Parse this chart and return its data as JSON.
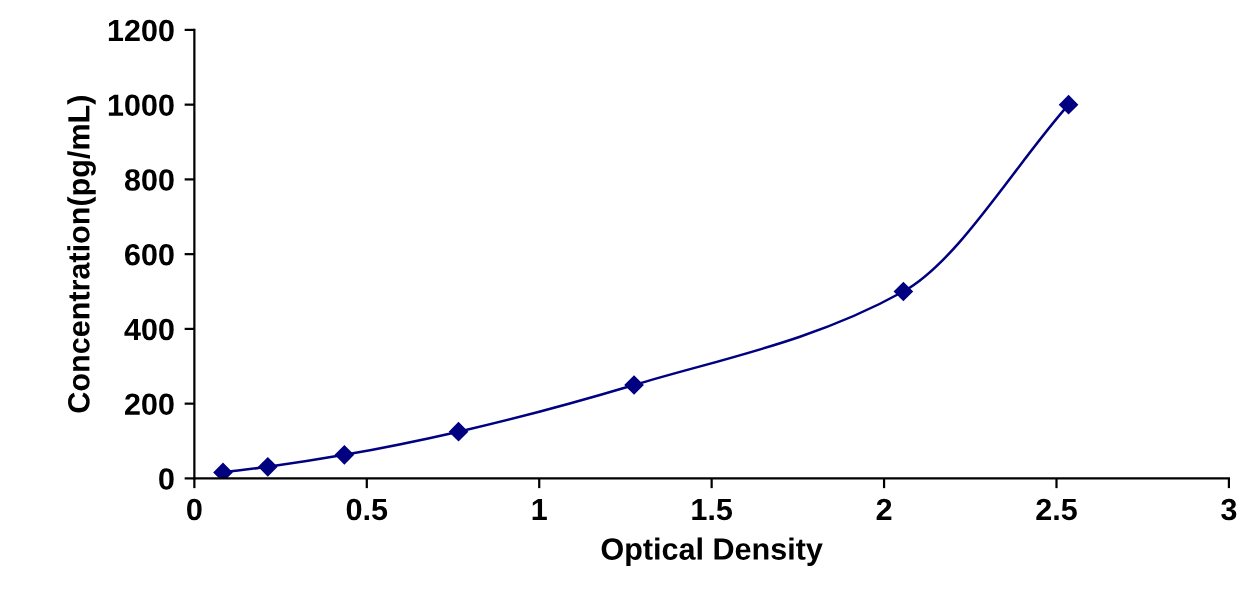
{
  "chart_data": {
    "type": "line",
    "xlabel": "Optical Density",
    "ylabel": "Concentration(pg/mL)",
    "series": [
      {
        "color": "#000080",
        "x": [
          0.083,
          0.213,
          0.435,
          0.766,
          1.275,
          2.056,
          2.535
        ],
        "values": [
          16,
          31,
          63,
          125,
          250,
          500,
          1000
        ]
      }
    ],
    "xlim": [
      0,
      3
    ],
    "xticks": [
      0,
      0.5,
      1,
      1.5,
      2,
      2.5,
      3
    ],
    "ylim": [
      0,
      1200
    ],
    "yticks": [
      0,
      200,
      400,
      600,
      800,
      1000,
      1200
    ],
    "grid": false,
    "legend": false,
    "marker": "diamond",
    "line_style": "solid"
  }
}
